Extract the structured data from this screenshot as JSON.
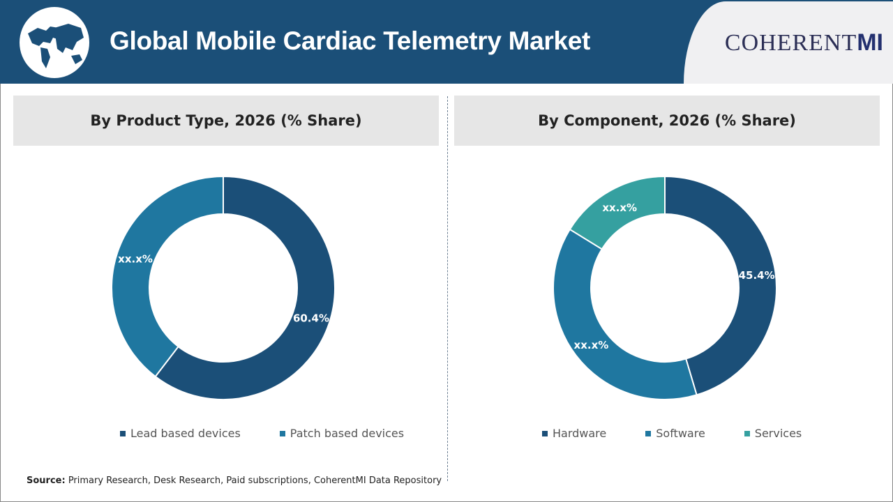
{
  "header": {
    "title": "Global Mobile Cardiac Telemetry Market",
    "brand": "COHERENT",
    "brand_suffix": "MI",
    "globe_icon": "world-map-icon"
  },
  "colors": {
    "header": "#1b4f78",
    "dark_blue": "#1b4f78",
    "mid_blue": "#1f77a0",
    "teal": "#35a0a0"
  },
  "chart_data": [
    {
      "type": "pie",
      "donut": true,
      "title": "By Product Type, 2026 (% Share)",
      "categories": [
        "Lead based devices",
        "Patch based devices"
      ],
      "values": [
        60.4,
        39.6
      ],
      "labels": [
        "60.4%",
        "xx.x%"
      ],
      "colors": [
        "#1b4f78",
        "#1f77a0"
      ],
      "legend": "bottom"
    },
    {
      "type": "pie",
      "donut": true,
      "title": "By Component, 2026 (% Share)",
      "categories": [
        "Hardware",
        "Software",
        "Services"
      ],
      "values": [
        45.4,
        38.4,
        16.2
      ],
      "labels": [
        "45.4%",
        "xx.x%",
        "xx.x%"
      ],
      "colors": [
        "#1b4f78",
        "#1f77a0",
        "#35a0a0"
      ],
      "legend": "bottom"
    }
  ],
  "source": {
    "label": "Source:",
    "text": " Primary Research, Desk Research, Paid subscriptions, CoherentMI Data Repository"
  }
}
